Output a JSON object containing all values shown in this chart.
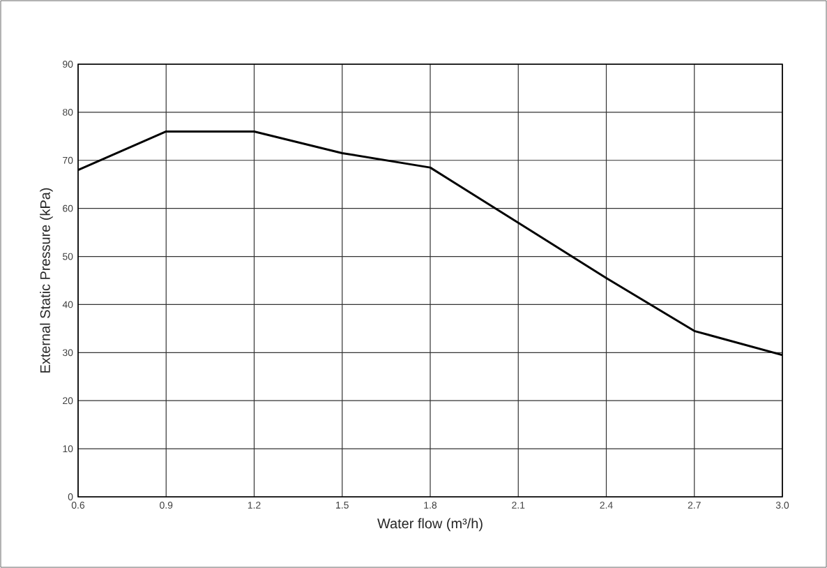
{
  "chart_data": {
    "type": "line",
    "xlabel": "Water flow (m³/h)",
    "ylabel": "External Static Pressure (kPa)",
    "x": [
      0.6,
      0.9,
      1.2,
      1.5,
      1.8,
      2.1,
      2.4,
      2.7,
      3.0
    ],
    "series": [
      {
        "color": "#000000",
        "values": [
          68,
          76,
          76,
          71.5,
          68.5,
          57,
          45.5,
          34.5,
          29.5
        ]
      }
    ],
    "xlim": [
      0.6,
      3.0
    ],
    "ylim": [
      0,
      90
    ],
    "xticks": [
      0.6,
      0.9,
      1.2,
      1.5,
      1.8,
      2.1,
      2.4,
      2.7,
      {
        "value": 3.0,
        "label": "3.0"
      }
    ],
    "yticks": [
      0,
      10,
      20,
      30,
      40,
      50,
      60,
      70,
      80,
      90
    ],
    "grid": true,
    "marker": "none",
    "line_style": "solid"
  }
}
